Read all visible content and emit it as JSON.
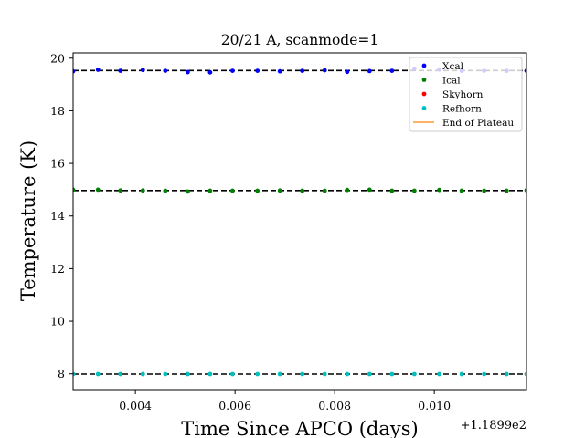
{
  "chart_data": {
    "type": "scatter",
    "title": "20/21 A, scanmode=1",
    "xlabel": "Time Since APCO (days)",
    "ylabel": "Temperature (K)",
    "x_offset_label": "+1.1899e2",
    "xlim": [
      0.00275,
      0.01185
    ],
    "ylim": [
      7.4,
      20.2
    ],
    "xticks": [
      0.004,
      0.006,
      0.008,
      0.01
    ],
    "xtick_labels": [
      "0.004",
      "0.006",
      "0.008",
      "0.010"
    ],
    "yticks": [
      8,
      10,
      12,
      14,
      16,
      18,
      20
    ],
    "ytick_labels": [
      "8",
      "10",
      "12",
      "14",
      "16",
      "18",
      "20"
    ],
    "grid": false,
    "legend_position": "top-right",
    "x": [
      0.00275,
      0.00325,
      0.0037,
      0.00415,
      0.0046,
      0.00505,
      0.0055,
      0.00595,
      0.00645,
      0.0069,
      0.00735,
      0.0078,
      0.00825,
      0.0087,
      0.00915,
      0.0096,
      0.0101,
      0.01055,
      0.011,
      0.01145,
      0.01185
    ],
    "series": [
      {
        "name": "Xcal",
        "color": "#0000ff",
        "marker": "dot",
        "values": [
          19.5,
          19.56,
          19.52,
          19.55,
          19.52,
          19.47,
          19.46,
          19.52,
          19.52,
          19.5,
          19.52,
          19.54,
          19.48,
          19.51,
          19.52,
          19.6,
          19.57,
          19.52,
          19.52,
          19.52,
          19.52
        ]
      },
      {
        "name": "Ical",
        "color": "#008000",
        "marker": "dot",
        "values": [
          15.0,
          15.0,
          14.97,
          14.97,
          14.96,
          14.93,
          14.96,
          14.96,
          14.96,
          14.97,
          14.96,
          14.96,
          14.99,
          15.0,
          14.96,
          14.96,
          14.99,
          14.96,
          14.96,
          14.96,
          14.98
        ]
      },
      {
        "name": "Skyhorn",
        "color": "#ff0000",
        "marker": "dot",
        "values": []
      },
      {
        "name": "Refhorn",
        "color": "#00bfbf",
        "marker": "dot",
        "values": [
          7.99,
          7.99,
          7.99,
          7.99,
          7.99,
          7.99,
          7.99,
          7.99,
          7.99,
          7.99,
          7.99,
          7.99,
          7.99,
          7.99,
          7.99,
          7.99,
          7.99,
          7.99,
          7.99,
          7.99,
          7.99
        ]
      },
      {
        "name": "End of Plateau",
        "color": "#ff9933",
        "marker": "line",
        "values": []
      }
    ],
    "reference_lines": [
      {
        "y": 19.53,
        "color": "#000000",
        "style": "dashed"
      },
      {
        "y": 14.97,
        "color": "#000000",
        "style": "dashed"
      },
      {
        "y": 7.99,
        "color": "#000000",
        "style": "dashed"
      }
    ]
  }
}
